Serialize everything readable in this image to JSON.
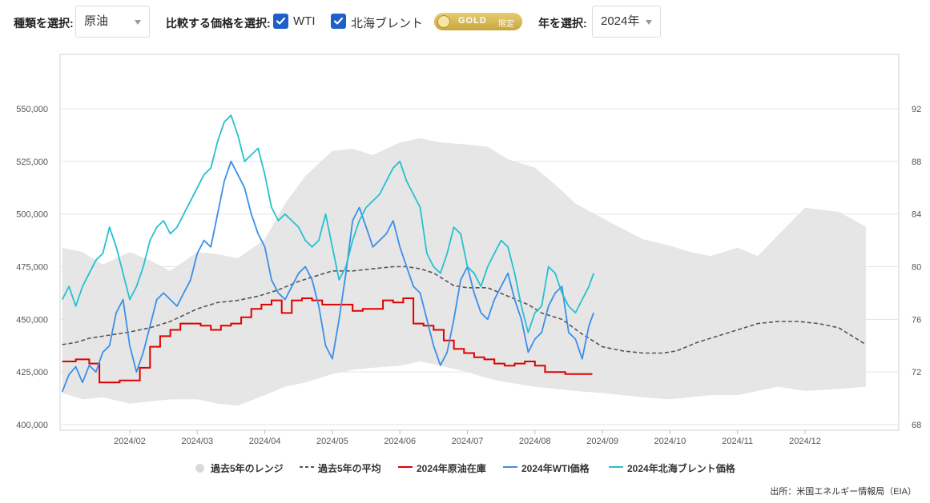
{
  "controls": {
    "type_label": "種類を選択:",
    "type_value": "原油",
    "compare_label": "比較する価格を選択:",
    "checkbox_wti": "WTI",
    "checkbox_brent": "北海ブレント",
    "gold_badge": "GOLD",
    "gold_sub": "限定",
    "year_label": "年を選択:",
    "year_value": "2024年"
  },
  "chart_data": {
    "type": "line",
    "x_ticks": [
      "2024/02",
      "2024/03",
      "2024/04",
      "2024/05",
      "2024/06",
      "2024/07",
      "2024/08",
      "2024/09",
      "2024/10",
      "2024/11",
      "2024/12"
    ],
    "y_left": {
      "range": [
        400000,
        550000
      ],
      "ticks": [
        "400,000",
        "425,000",
        "450,000",
        "475,000",
        "500,000",
        "525,000",
        "550,000"
      ]
    },
    "y_right": {
      "range": [
        68,
        92
      ],
      "ticks": [
        "68",
        "72",
        "76",
        "80",
        "84",
        "88",
        "92"
      ]
    },
    "grid": true,
    "legend_position": "bottom",
    "series": [
      {
        "name": "過去5年のレンジ",
        "axis": "left",
        "color": "#e6e6e6",
        "x": [
          1.0,
          1.3,
          1.6,
          2.0,
          2.3,
          2.6,
          3.0,
          3.3,
          3.6,
          4.0,
          4.3,
          4.6,
          5.0,
          5.3,
          5.6,
          6.0,
          6.3,
          6.6,
          7.0,
          7.3,
          7.6,
          8.0,
          8.3,
          8.6,
          9.0,
          9.3,
          9.6,
          10.0,
          10.3,
          10.6,
          11.0,
          11.3,
          11.6,
          12.0,
          12.5,
          12.9
        ],
        "upper": [
          484000,
          482000,
          476000,
          482000,
          478000,
          473000,
          482000,
          481000,
          479000,
          488000,
          505000,
          518000,
          530000,
          531000,
          528000,
          534000,
          536000,
          534000,
          533000,
          532000,
          526000,
          522000,
          514000,
          505000,
          498000,
          493000,
          488000,
          485000,
          482000,
          480000,
          484000,
          480000,
          490000,
          503000,
          501000,
          494000
        ],
        "lower": [
          415000,
          412000,
          413000,
          410000,
          411000,
          412000,
          412000,
          410000,
          409000,
          414000,
          418000,
          420000,
          424000,
          426000,
          427000,
          428000,
          430000,
          428000,
          425000,
          422000,
          420000,
          418000,
          417000,
          416000,
          415000,
          414000,
          413000,
          412000,
          413000,
          414000,
          414000,
          416000,
          418000,
          416000,
          417000,
          418000
        ]
      },
      {
        "name": "過去5年の平均",
        "axis": "left",
        "color": "#555555",
        "x": [
          1.0,
          1.2,
          1.4,
          1.6,
          1.8,
          2.0,
          2.3,
          2.6,
          2.8,
          3.0,
          3.3,
          3.6,
          3.9,
          4.2,
          4.5,
          4.8,
          5.0,
          5.3,
          5.6,
          5.9,
          6.1,
          6.3,
          6.5,
          6.8,
          7.0,
          7.3,
          7.6,
          7.9,
          8.1,
          8.4,
          8.7,
          9.0,
          9.3,
          9.6,
          9.9,
          10.1,
          10.4,
          10.7,
          11.0,
          11.3,
          11.6,
          11.9,
          12.2,
          12.5,
          12.9
        ],
        "values": [
          438000,
          439000,
          441000,
          442000,
          443000,
          444000,
          446000,
          449000,
          452000,
          455000,
          458000,
          459000,
          461000,
          464000,
          468000,
          471000,
          473000,
          473000,
          474000,
          475000,
          475000,
          474000,
          472000,
          466000,
          465000,
          465000,
          461000,
          457000,
          453000,
          450000,
          443000,
          437000,
          435000,
          434000,
          434000,
          435000,
          439000,
          442000,
          445000,
          448000,
          449000,
          449000,
          448000,
          446000,
          438000
        ]
      },
      {
        "name": "2024年原油在庫",
        "axis": "left",
        "color": "#e00000",
        "x": [
          1.0,
          1.2,
          1.4,
          1.55,
          1.7,
          1.85,
          2.0,
          2.15,
          2.3,
          2.45,
          2.6,
          2.75,
          2.9,
          3.05,
          3.2,
          3.35,
          3.5,
          3.65,
          3.8,
          3.95,
          4.1,
          4.25,
          4.4,
          4.55,
          4.7,
          4.85,
          5.0,
          5.15,
          5.3,
          5.45,
          5.6,
          5.75,
          5.9,
          6.05,
          6.2,
          6.35,
          6.5,
          6.65,
          6.8,
          6.95,
          7.1,
          7.25,
          7.4,
          7.55,
          7.7,
          7.85,
          8.0,
          8.15,
          8.3,
          8.45,
          8.6,
          8.75,
          8.85
        ],
        "values": [
          430000,
          431000,
          429000,
          420000,
          420000,
          421000,
          421000,
          427000,
          437000,
          442000,
          445000,
          448000,
          448000,
          447000,
          445000,
          447000,
          448000,
          451000,
          455000,
          457000,
          459000,
          453000,
          459000,
          460000,
          459000,
          457000,
          457000,
          457000,
          454000,
          455000,
          455000,
          459000,
          458000,
          460000,
          448000,
          447000,
          445000,
          440000,
          436000,
          434000,
          432000,
          431000,
          429000,
          428000,
          429000,
          430000,
          428000,
          425000,
          425000,
          424000,
          424000,
          424000,
          424000
        ]
      },
      {
        "name": "2024年WTI価格",
        "axis": "right",
        "color": "#3b8fe8",
        "x": [
          1.0,
          1.1,
          1.2,
          1.3,
          1.4,
          1.5,
          1.6,
          1.7,
          1.8,
          1.9,
          2.0,
          2.1,
          2.2,
          2.3,
          2.4,
          2.5,
          2.6,
          2.7,
          2.8,
          2.9,
          3.0,
          3.1,
          3.2,
          3.3,
          3.4,
          3.5,
          3.6,
          3.7,
          3.8,
          3.9,
          4.0,
          4.1,
          4.2,
          4.3,
          4.4,
          4.5,
          4.6,
          4.7,
          4.8,
          4.9,
          5.0,
          5.1,
          5.2,
          5.3,
          5.4,
          5.5,
          5.6,
          5.7,
          5.8,
          5.9,
          6.0,
          6.1,
          6.2,
          6.3,
          6.4,
          6.5,
          6.6,
          6.7,
          6.8,
          6.9,
          7.0,
          7.1,
          7.2,
          7.3,
          7.4,
          7.5,
          7.6,
          7.7,
          7.8,
          7.9,
          8.0,
          8.1,
          8.2,
          8.3,
          8.4,
          8.5,
          8.6,
          8.7,
          8.8,
          8.87
        ],
        "values": [
          70.5,
          71.8,
          72.4,
          71.2,
          72.5,
          72.0,
          73.5,
          74.0,
          76.5,
          77.5,
          74.0,
          72.0,
          73.5,
          75.5,
          77.5,
          78.0,
          77.5,
          77.0,
          78.0,
          79.0,
          81.0,
          82.0,
          81.5,
          84.0,
          86.5,
          88.0,
          87.0,
          86.0,
          84.0,
          82.5,
          81.5,
          79.0,
          78.0,
          77.5,
          78.5,
          79.5,
          80.0,
          79.0,
          77.0,
          74.0,
          73.0,
          76.0,
          79.5,
          83.5,
          84.5,
          83.0,
          81.5,
          82.0,
          82.5,
          83.5,
          81.5,
          80.0,
          78.5,
          78.0,
          76.0,
          74.0,
          72.5,
          73.5,
          76.0,
          79.0,
          80.0,
          78.0,
          76.5,
          76.0,
          77.5,
          78.5,
          79.5,
          77.5,
          76.0,
          73.5,
          74.5,
          75.0,
          77.0,
          78.0,
          78.5,
          75.0,
          74.5,
          73.0,
          75.5,
          76.5
        ]
      },
      {
        "name": "2024年北海ブレント価格",
        "axis": "right",
        "color": "#25c1cf",
        "x": [
          1.0,
          1.1,
          1.2,
          1.3,
          1.4,
          1.5,
          1.6,
          1.7,
          1.8,
          1.9,
          2.0,
          2.1,
          2.2,
          2.3,
          2.4,
          2.5,
          2.6,
          2.7,
          2.8,
          2.9,
          3.0,
          3.1,
          3.2,
          3.3,
          3.4,
          3.5,
          3.6,
          3.7,
          3.8,
          3.9,
          4.0,
          4.1,
          4.2,
          4.3,
          4.4,
          4.5,
          4.6,
          4.7,
          4.8,
          4.9,
          5.0,
          5.1,
          5.2,
          5.3,
          5.4,
          5.5,
          5.6,
          5.7,
          5.8,
          5.9,
          6.0,
          6.1,
          6.2,
          6.3,
          6.4,
          6.5,
          6.6,
          6.7,
          6.8,
          6.9,
          7.0,
          7.1,
          7.2,
          7.3,
          7.4,
          7.5,
          7.6,
          7.7,
          7.8,
          7.9,
          8.0,
          8.1,
          8.2,
          8.3,
          8.4,
          8.5,
          8.6,
          8.7,
          8.8,
          8.87
        ],
        "values": [
          77.5,
          78.5,
          77.0,
          78.5,
          79.5,
          80.5,
          81.0,
          83.0,
          81.5,
          79.5,
          77.5,
          78.5,
          80.0,
          82.0,
          83.0,
          83.5,
          82.5,
          83.0,
          84.0,
          85.0,
          86.0,
          87.0,
          87.5,
          89.5,
          91.0,
          91.5,
          90.0,
          88.0,
          88.5,
          89.0,
          87.0,
          84.5,
          83.5,
          84.0,
          83.5,
          83.0,
          82.0,
          81.5,
          82.0,
          84.0,
          81.5,
          79.0,
          80.0,
          82.0,
          83.5,
          84.5,
          85.0,
          85.5,
          86.5,
          87.5,
          88.0,
          86.5,
          85.5,
          84.5,
          81.0,
          80.0,
          79.5,
          81.0,
          83.0,
          82.5,
          80.0,
          79.5,
          78.5,
          80.0,
          81.0,
          82.0,
          81.5,
          79.5,
          77.0,
          75.0,
          76.5,
          77.0,
          80.0,
          79.5,
          78.0,
          77.0,
          76.5,
          77.5,
          78.5,
          79.5
        ]
      }
    ]
  },
  "source": "出所：米国エネルギー情報局（EIA）"
}
